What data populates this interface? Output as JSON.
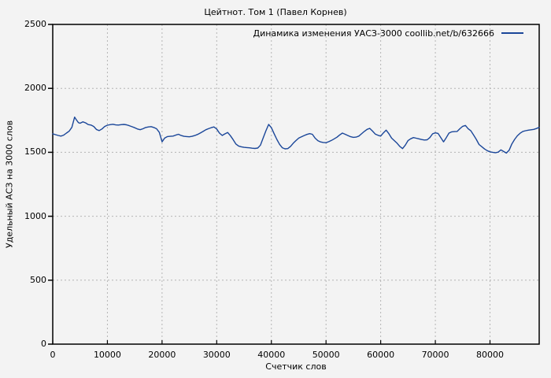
{
  "colors": {
    "background": "#f3f3f3",
    "axis": "#000000",
    "grid": "#b4b4b4",
    "line": "#1a4699"
  },
  "chart_data": {
    "type": "line",
    "title": "Цейтнот. Том 1 (Павел Корнев)",
    "xlabel": "Счетчик слов",
    "ylabel": "Удельный АСЗ на 3000 слов",
    "xlim": [
      0,
      89000
    ],
    "ylim": [
      0,
      2500
    ],
    "xticks": [
      0,
      10000,
      20000,
      30000,
      40000,
      50000,
      60000,
      70000,
      80000
    ],
    "yticks": [
      0,
      500,
      1000,
      1500,
      2000,
      2500
    ],
    "grid": true,
    "grid_style": "dashed",
    "legend_position": "top-right-inside",
    "series": [
      {
        "name": "Динамика изменения УАСЗ-3000 coollib.net/b/632666",
        "color": "#1a4699",
        "points": [
          [
            0,
            1645
          ],
          [
            500,
            1638
          ],
          [
            1000,
            1632
          ],
          [
            1500,
            1627
          ],
          [
            2000,
            1634
          ],
          [
            2500,
            1650
          ],
          [
            3000,
            1665
          ],
          [
            3500,
            1695
          ],
          [
            4000,
            1775
          ],
          [
            4300,
            1755
          ],
          [
            4700,
            1732
          ],
          [
            5000,
            1727
          ],
          [
            5500,
            1738
          ],
          [
            6000,
            1730
          ],
          [
            6500,
            1717
          ],
          [
            7000,
            1713
          ],
          [
            7500,
            1702
          ],
          [
            8000,
            1678
          ],
          [
            8500,
            1670
          ],
          [
            9000,
            1682
          ],
          [
            9500,
            1702
          ],
          [
            10000,
            1712
          ],
          [
            10500,
            1716
          ],
          [
            11000,
            1719
          ],
          [
            11500,
            1714
          ],
          [
            12000,
            1713
          ],
          [
            12500,
            1716
          ],
          [
            13000,
            1718
          ],
          [
            13500,
            1715
          ],
          [
            14000,
            1708
          ],
          [
            14500,
            1700
          ],
          [
            15000,
            1692
          ],
          [
            15500,
            1682
          ],
          [
            16000,
            1677
          ],
          [
            16500,
            1684
          ],
          [
            17000,
            1694
          ],
          [
            17500,
            1698
          ],
          [
            18000,
            1701
          ],
          [
            18500,
            1694
          ],
          [
            19000,
            1684
          ],
          [
            19500,
            1656
          ],
          [
            20000,
            1582
          ],
          [
            20500,
            1612
          ],
          [
            21000,
            1623
          ],
          [
            21500,
            1625
          ],
          [
            22000,
            1627
          ],
          [
            22500,
            1634
          ],
          [
            23000,
            1641
          ],
          [
            23500,
            1631
          ],
          [
            24000,
            1625
          ],
          [
            24500,
            1623
          ],
          [
            25000,
            1621
          ],
          [
            25500,
            1625
          ],
          [
            26000,
            1631
          ],
          [
            26500,
            1640
          ],
          [
            27000,
            1651
          ],
          [
            27500,
            1663
          ],
          [
            28000,
            1676
          ],
          [
            28500,
            1685
          ],
          [
            29000,
            1693
          ],
          [
            29500,
            1698
          ],
          [
            30000,
            1682
          ],
          [
            30500,
            1650
          ],
          [
            31000,
            1632
          ],
          [
            31500,
            1644
          ],
          [
            32000,
            1655
          ],
          [
            32500,
            1630
          ],
          [
            33000,
            1600
          ],
          [
            33500,
            1565
          ],
          [
            34000,
            1549
          ],
          [
            34500,
            1543
          ],
          [
            35000,
            1539
          ],
          [
            35500,
            1537
          ],
          [
            36000,
            1535
          ],
          [
            36500,
            1532
          ],
          [
            37000,
            1530
          ],
          [
            37500,
            1533
          ],
          [
            38000,
            1556
          ],
          [
            38500,
            1612
          ],
          [
            39000,
            1668
          ],
          [
            39500,
            1718
          ],
          [
            40000,
            1692
          ],
          [
            40500,
            1646
          ],
          [
            41000,
            1601
          ],
          [
            41500,
            1562
          ],
          [
            42000,
            1536
          ],
          [
            42500,
            1527
          ],
          [
            43000,
            1529
          ],
          [
            43500,
            1546
          ],
          [
            44000,
            1571
          ],
          [
            44500,
            1592
          ],
          [
            45000,
            1611
          ],
          [
            45500,
            1621
          ],
          [
            46000,
            1631
          ],
          [
            46500,
            1640
          ],
          [
            47000,
            1646
          ],
          [
            47500,
            1641
          ],
          [
            48000,
            1611
          ],
          [
            48500,
            1591
          ],
          [
            49000,
            1581
          ],
          [
            49500,
            1577
          ],
          [
            50000,
            1575
          ],
          [
            50500,
            1583
          ],
          [
            51000,
            1593
          ],
          [
            51500,
            1605
          ],
          [
            52000,
            1618
          ],
          [
            52500,
            1636
          ],
          [
            53000,
            1650
          ],
          [
            53500,
            1641
          ],
          [
            54000,
            1631
          ],
          [
            54500,
            1622
          ],
          [
            55000,
            1617
          ],
          [
            55500,
            1619
          ],
          [
            56000,
            1627
          ],
          [
            56500,
            1645
          ],
          [
            57000,
            1663
          ],
          [
            57500,
            1679
          ],
          [
            58000,
            1687
          ],
          [
            58500,
            1666
          ],
          [
            59000,
            1643
          ],
          [
            59500,
            1633
          ],
          [
            60000,
            1627
          ],
          [
            60500,
            1652
          ],
          [
            61000,
            1673
          ],
          [
            61500,
            1646
          ],
          [
            62000,
            1611
          ],
          [
            62500,
            1591
          ],
          [
            63000,
            1571
          ],
          [
            63500,
            1546
          ],
          [
            64000,
            1529
          ],
          [
            64500,
            1556
          ],
          [
            65000,
            1591
          ],
          [
            65500,
            1606
          ],
          [
            66000,
            1615
          ],
          [
            66500,
            1610
          ],
          [
            67000,
            1605
          ],
          [
            67500,
            1600
          ],
          [
            68000,
            1596
          ],
          [
            68500,
            1598
          ],
          [
            69000,
            1615
          ],
          [
            69500,
            1645
          ],
          [
            70000,
            1652
          ],
          [
            70500,
            1648
          ],
          [
            71000,
            1615
          ],
          [
            71500,
            1582
          ],
          [
            72000,
            1615
          ],
          [
            72500,
            1650
          ],
          [
            73000,
            1660
          ],
          [
            73500,
            1662
          ],
          [
            74000,
            1663
          ],
          [
            74500,
            1685
          ],
          [
            75000,
            1703
          ],
          [
            75500,
            1710
          ],
          [
            76000,
            1685
          ],
          [
            76500,
            1668
          ],
          [
            77000,
            1635
          ],
          [
            77500,
            1601
          ],
          [
            78000,
            1561
          ],
          [
            78500,
            1544
          ],
          [
            79000,
            1526
          ],
          [
            79500,
            1513
          ],
          [
            80000,
            1504
          ],
          [
            80500,
            1500
          ],
          [
            81000,
            1497
          ],
          [
            81500,
            1501
          ],
          [
            82000,
            1519
          ],
          [
            82500,
            1506
          ],
          [
            83000,
            1494
          ],
          [
            83500,
            1516
          ],
          [
            84000,
            1566
          ],
          [
            84500,
            1601
          ],
          [
            85000,
            1629
          ],
          [
            85500,
            1649
          ],
          [
            86000,
            1663
          ],
          [
            86500,
            1669
          ],
          [
            87000,
            1673
          ],
          [
            87500,
            1676
          ],
          [
            88000,
            1679
          ],
          [
            88500,
            1686
          ],
          [
            89000,
            1695
          ]
        ]
      }
    ]
  }
}
